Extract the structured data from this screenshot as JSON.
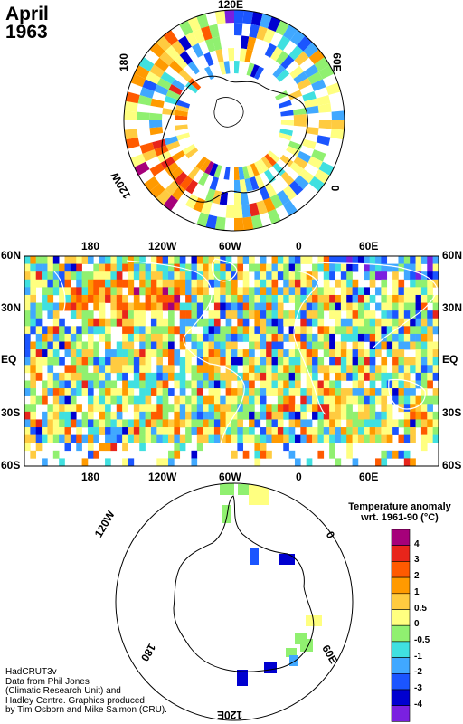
{
  "title": {
    "month": "April",
    "year": "1963"
  },
  "credit": {
    "lines": [
      "HadCRUT3v",
      "Data from Phil Jones",
      "(Climatic Research Unit) and",
      "Hadley Centre.  Graphics produced",
      "by Tim Osborn and Mike Salmon (CRU)."
    ]
  },
  "north_polar": {
    "labels": {
      "top": "120E",
      "left": "180",
      "right": "60E",
      "lower_left": "120W",
      "lower_right": "0"
    }
  },
  "map": {
    "lat_labels": [
      "60N",
      "30N",
      "EQ",
      "30S",
      "60S"
    ],
    "lon_labels": [
      "180",
      "120W",
      "60W",
      "0",
      "60E"
    ]
  },
  "south_polar": {
    "labels": {
      "top_left": "120W",
      "top": "60W",
      "right": "0",
      "lower_left": "180",
      "lower_right": "60E",
      "bottom": "120E"
    }
  },
  "legend": {
    "title_line1": "Temperature anomaly",
    "title_line2": "wrt. 1961-90  (°C)",
    "levels": [
      "4",
      "3",
      "2",
      "1",
      "0.5",
      "0",
      "-0.5",
      "-1",
      "-2",
      "-3",
      "-4"
    ],
    "colors": [
      "#a6007a",
      "#e8251b",
      "#ff5a00",
      "#ff9a00",
      "#ffcb40",
      "#ffff80",
      "#90f070",
      "#40e0e0",
      "#40a8ff",
      "#1b55ff",
      "#0000d0",
      "#7a20e0"
    ]
  }
}
